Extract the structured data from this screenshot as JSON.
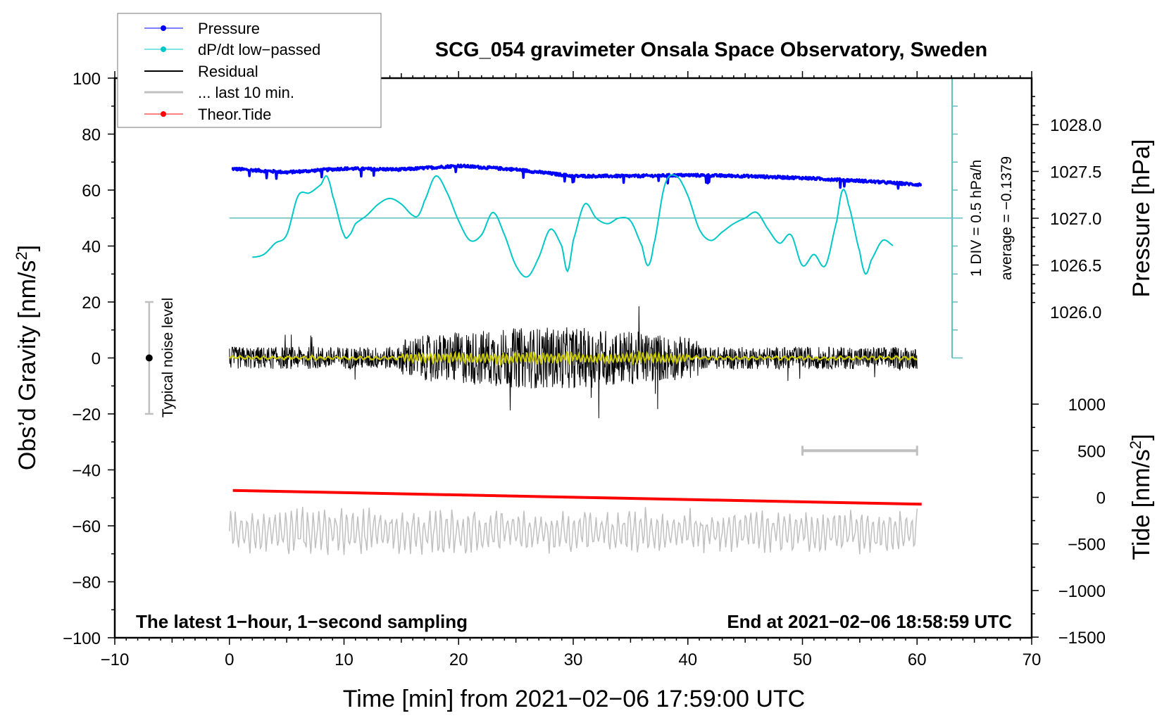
{
  "colors": {
    "pressure": "#0000ff",
    "dpdt": "#00c8c8",
    "residual": "#000000",
    "last10": "#c0c0c0",
    "tide": "#ff0000",
    "smoothed": "#c8c800",
    "scale": "#5fbfbf"
  },
  "chart_data": {
    "type": "line",
    "title": "SCG_054 gravimeter Onsala Space Observatory, Sweden",
    "xlabel": "Time [min] from 2021−02−06 17:59:00 UTC",
    "ylabel_left": "Obs’d Gravity [nm/s",
    "ylabel_left_sup": "2",
    "ylabel_left_end": "]",
    "ylabel_pressure": "Pressure [hPa]",
    "ylabel_tide": "Tide [nm/s",
    "ylabel_tide_sup": "2",
    "ylabel_tide_end": "]",
    "xlim": [
      -10,
      70
    ],
    "ylim": [
      -100,
      100
    ],
    "pressure_lim_hint": [
      1025.6,
      1028.3
    ],
    "tide_lim": [
      -1500,
      1500
    ],
    "x_ticks": [
      "−10",
      "0",
      "10",
      "20",
      "30",
      "40",
      "50",
      "60",
      "70"
    ],
    "y_ticks": [
      "100",
      "80",
      "60",
      "40",
      "20",
      "0",
      "−20",
      "−40",
      "−60",
      "−80",
      "−100"
    ],
    "pressure_ticks": [
      "1028.0",
      "1027.5",
      "1027.0",
      "1026.5",
      "1026.0"
    ],
    "tide_ticks": [
      "1000",
      "500",
      "0",
      "−500",
      "−1000",
      "−1500"
    ],
    "annotation_bottom_left": "The latest 1−hour, 1−second sampling",
    "annotation_bottom_right": "End at 2021−02−06 18:58:59 UTC",
    "scale_div": "1 DIV = 0.5 hPa/h",
    "average": "average = −0.1379",
    "noise_label": "Typical noise level",
    "noise_level": [
      -20,
      20
    ],
    "legend": [
      "Pressure",
      "dP/dt low−passed",
      "Residual",
      "... last 10 min.",
      "Theor.Tide"
    ],
    "legend_placement": "top-left",
    "series": [
      {
        "name": "Pressure",
        "unit": "hPa",
        "x": [
          0,
          5,
          10,
          15,
          20,
          25,
          30,
          35,
          40,
          45,
          50,
          55,
          60
        ],
        "values": [
          1027.53,
          1027.49,
          1027.53,
          1027.52,
          1027.56,
          1027.52,
          1027.45,
          1027.45,
          1027.46,
          1027.45,
          1027.43,
          1027.4,
          1027.36
        ]
      },
      {
        "name": "dP/dt low-passed",
        "unit": "gravity-axis",
        "x": [
          2,
          3,
          4,
          5,
          6,
          7,
          8,
          8.5,
          9,
          10,
          10.5,
          11,
          12,
          13,
          14,
          15,
          16,
          16.5,
          17,
          18,
          19,
          20,
          21,
          22,
          23,
          24,
          25,
          26,
          27,
          28,
          29,
          29.5,
          30,
          31,
          32,
          33,
          34,
          35,
          36,
          36.5,
          37,
          38,
          39,
          40,
          41,
          42,
          43,
          44,
          45,
          46,
          47,
          48,
          49,
          50,
          51,
          52,
          53,
          53.5,
          54,
          55,
          55.5,
          56,
          57,
          58
        ],
        "values": [
          36,
          37,
          41,
          44,
          58,
          59,
          62,
          65,
          58,
          44,
          44,
          48,
          51,
          55,
          57,
          55,
          51,
          51,
          56,
          65,
          59,
          49,
          42,
          44,
          52,
          44,
          33,
          29,
          36,
          46,
          40,
          31,
          42,
          55,
          50,
          48,
          50,
          49,
          40,
          33,
          40,
          62,
          65,
          58,
          46,
          42,
          45,
          48,
          50,
          52,
          46,
          41,
          44,
          33,
          37,
          33,
          49,
          60,
          55,
          38,
          30,
          35,
          42,
          40
        ]
      },
      {
        "name": "Residual",
        "unit": "nm/s2",
        "x_range": [
          0,
          60
        ],
        "typical_amplitude": 5,
        "max_amplitude": 22
      },
      {
        "name": "... last 10 min.",
        "unit": "nm/s2",
        "x_range": [
          0,
          60
        ],
        "offset": -62,
        "typical_amplitude": 6
      },
      {
        "name": "Theor.Tide",
        "unit": "nm/s2",
        "x": [
          0,
          60
        ],
        "values": [
          74,
          -74
        ]
      }
    ],
    "last10_bar": [
      50,
      60
    ],
    "reference_line": 50
  }
}
